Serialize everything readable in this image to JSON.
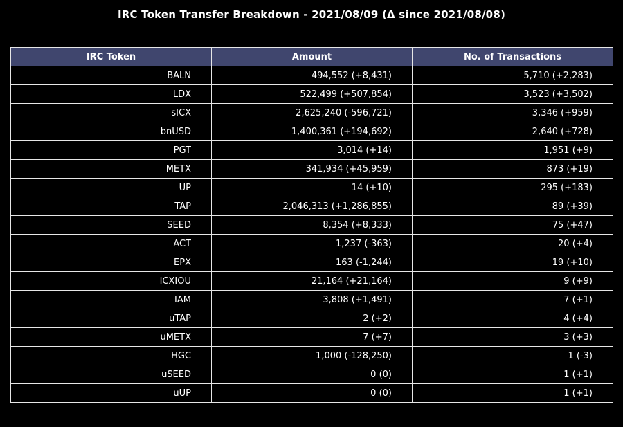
{
  "chart_data": {
    "type": "table",
    "title": "IRC Token Transfer Breakdown - 2021/08/09 (Δ since 2021/08/08)",
    "columns": [
      "IRC Token",
      "Amount",
      "No. of Transactions"
    ],
    "rows": [
      [
        "BALN",
        "494,552 (+8,431)",
        "5,710 (+2,283)"
      ],
      [
        "LDX",
        "522,499 (+507,854)",
        "3,523 (+3,502)"
      ],
      [
        "sICX",
        "2,625,240 (-596,721)",
        "3,346 (+959)"
      ],
      [
        "bnUSD",
        "1,400,361 (+194,692)",
        "2,640 (+728)"
      ],
      [
        "PGT",
        "3,014 (+14)",
        "1,951 (+9)"
      ],
      [
        "METX",
        "341,934 (+45,959)",
        "873 (+19)"
      ],
      [
        "UP",
        "14 (+10)",
        "295 (+183)"
      ],
      [
        "TAP",
        "2,046,313 (+1,286,855)",
        "89 (+39)"
      ],
      [
        "SEED",
        "8,354 (+8,333)",
        "75 (+47)"
      ],
      [
        "ACT",
        "1,237 (-363)",
        "20 (+4)"
      ],
      [
        "EPX",
        "163 (-1,244)",
        "19 (+10)"
      ],
      [
        "ICXIOU",
        "21,164 (+21,164)",
        "9 (+9)"
      ],
      [
        "IAM",
        "3,808 (+1,491)",
        "7 (+1)"
      ],
      [
        "uTAP",
        "2 (+2)",
        "4 (+4)"
      ],
      [
        "uMETX",
        "7 (+7)",
        "3 (+3)"
      ],
      [
        "HGC",
        "1,000 (-128,250)",
        "1 (-3)"
      ],
      [
        "uSEED",
        "0 (0)",
        "1 (+1)"
      ],
      [
        "uUP",
        "0 (0)",
        "1 (+1)"
      ]
    ],
    "colors": {
      "background": "#000000",
      "header_fill": "#40466e",
      "cell_fill": "#000000",
      "grid": "#e6e6e6",
      "text": "#ffffff"
    }
  }
}
